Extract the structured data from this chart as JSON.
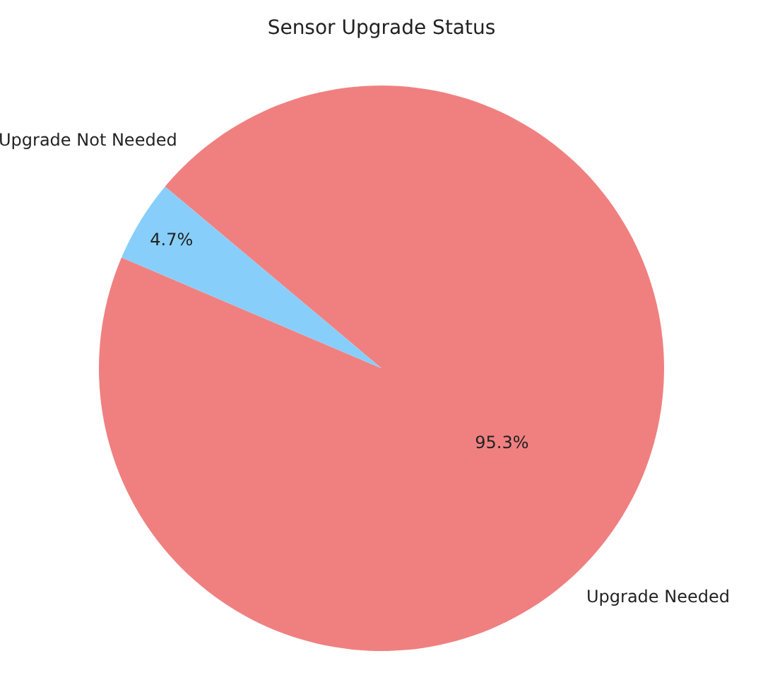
{
  "chart_data": {
    "type": "pie",
    "title": "Sensor Upgrade Status",
    "categories": [
      "Upgrade Needed",
      "Upgrade Not Needed"
    ],
    "values": [
      95.3,
      4.7
    ],
    "colors": [
      "#f08080",
      "#87cefa"
    ],
    "value_labels": [
      "95.3%",
      "4.7%"
    ],
    "legend": false
  }
}
